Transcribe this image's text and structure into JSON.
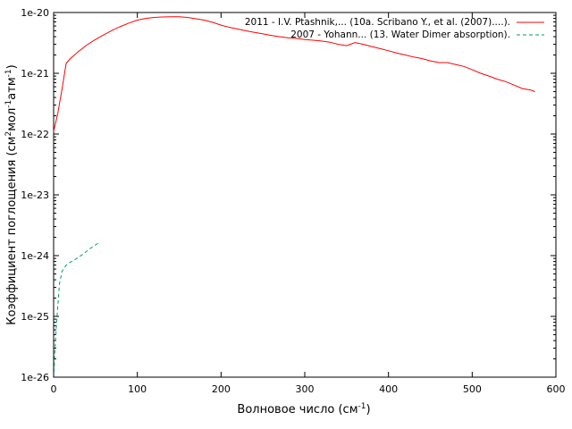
{
  "chart_data": {
    "type": "line",
    "title": "",
    "xlabel": {
      "base": "Волновое число (см",
      "sup": "-1",
      "tail": ")"
    },
    "ylabel": {
      "p1": "Коэффициент поглощения (см",
      "s1": "2",
      "p2": "мол",
      "s2": "-1",
      "p3": "атм",
      "s3": "-1",
      "p4": ")"
    },
    "xlim": [
      0,
      600
    ],
    "ylim": [
      1e-26,
      1e-20
    ],
    "yscale": "log",
    "grid": false,
    "legend_position": "top-right",
    "x_ticks": [
      "0",
      "100",
      "200",
      "300",
      "400",
      "500",
      "600"
    ],
    "y_ticks": [
      "1e-26",
      "1e-25",
      "1e-24",
      "1e-23",
      "1e-22",
      "1e-21",
      "1e-20"
    ],
    "series": [
      {
        "name": "2011 - I.V. Ptashnik,... (10a. Scribano Y., et al. (2007)....).",
        "color": "#ff0000",
        "style": "solid",
        "x": [
          0,
          5,
          10,
          15,
          20,
          25,
          30,
          40,
          50,
          60,
          70,
          80,
          90,
          100,
          110,
          120,
          130,
          140,
          150,
          160,
          170,
          180,
          190,
          200,
          210,
          220,
          230,
          240,
          250,
          260,
          270,
          280,
          290,
          300,
          310,
          320,
          330,
          340,
          350,
          360,
          370,
          380,
          390,
          400,
          410,
          420,
          430,
          440,
          450,
          460,
          470,
          480,
          490,
          500,
          510,
          520,
          530,
          540,
          550,
          560,
          570,
          575
        ],
        "y": [
          1.1e-22,
          2.2e-22,
          5.5e-22,
          1.45e-21,
          1.75e-21,
          2e-21,
          2.3e-21,
          2.95e-21,
          3.6e-21,
          4.3e-21,
          5.1e-21,
          5.9e-21,
          6.7e-21,
          7.5e-21,
          8e-21,
          8.3e-21,
          8.45e-21,
          8.5e-21,
          8.5e-21,
          8.3e-21,
          7.9e-21,
          7.5e-21,
          6.9e-21,
          6.2e-21,
          5.7e-21,
          5.35e-21,
          5e-21,
          4.7e-21,
          4.45e-21,
          4.2e-21,
          4e-21,
          3.85e-21,
          3.75e-21,
          3.6e-21,
          3.5e-21,
          3.4e-21,
          3.25e-21,
          3e-21,
          2.85e-21,
          3.2e-21,
          3e-21,
          2.75e-21,
          2.55e-21,
          2.35e-21,
          2.15e-21,
          2e-21,
          1.85e-21,
          1.75e-21,
          1.6e-21,
          1.5e-21,
          1.5e-21,
          1.4e-21,
          1.3e-21,
          1.15e-21,
          1e-21,
          9e-22,
          8e-22,
          7.3e-22,
          6.4e-22,
          5.6e-22,
          5.3e-22,
          5e-22
        ]
      },
      {
        "name": "2007 - Yohann... (13. Water Dimer absorption).",
        "color": "#009e73",
        "style": "dashed",
        "x": [
          0.5,
          1,
          2,
          3,
          5,
          7,
          10,
          15,
          20,
          25,
          30,
          35,
          40,
          45,
          50,
          55
        ],
        "y": [
          1.2e-26,
          2e-26,
          3.5e-26,
          6e-26,
          1.5e-25,
          3.5e-25,
          5.5e-25,
          7e-25,
          7.8e-25,
          8.5e-25,
          9.5e-25,
          1.05e-24,
          1.2e-24,
          1.35e-24,
          1.5e-24,
          1.65e-24
        ]
      }
    ]
  }
}
